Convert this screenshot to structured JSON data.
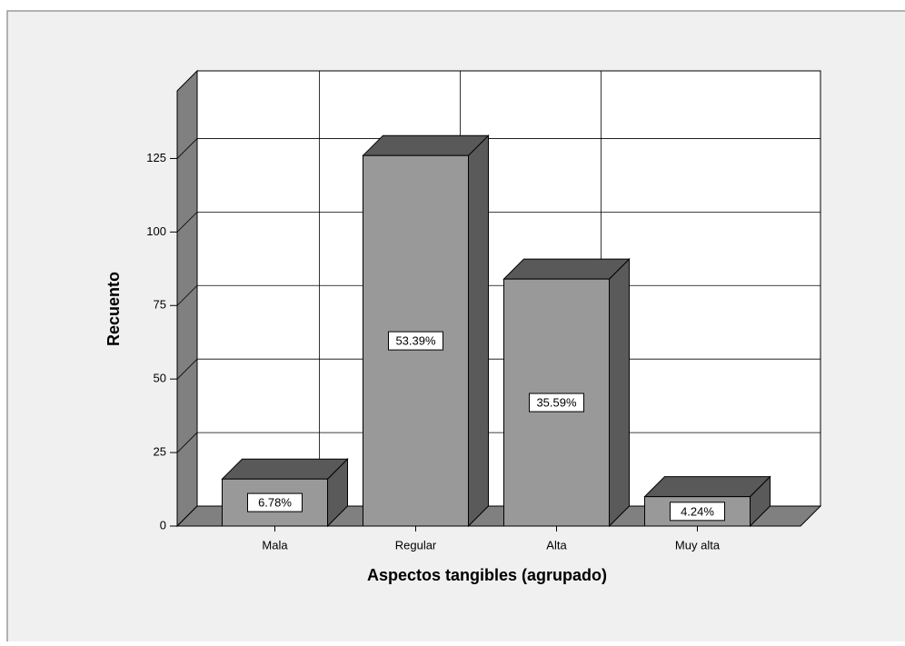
{
  "chart_data": {
    "type": "bar3d",
    "x_label": "Aspectos tangibles (agrupado)",
    "y_label": "Recuento",
    "categories": [
      "Mala",
      "Regular",
      "Alta",
      "Muy alta"
    ],
    "values": [
      16,
      126,
      84,
      10
    ],
    "value_labels": [
      "6.78%",
      "53.39%",
      "35.59%",
      "4.24%"
    ],
    "color": "#999999",
    "ylim": [
      0,
      148
    ],
    "yticks": [
      0,
      25,
      50,
      75,
      100,
      125
    ],
    "grid": true
  }
}
